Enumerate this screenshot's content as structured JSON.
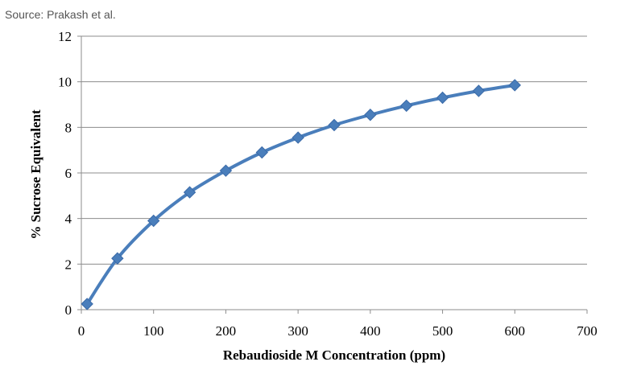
{
  "source": "Source: Prakash et al.",
  "chart_data": {
    "type": "line",
    "xlabel": "Rebaudioside M Concentration  (ppm)",
    "ylabel": "% Sucrose Equivalent",
    "xlim": [
      0,
      700
    ],
    "ylim": [
      0,
      12
    ],
    "xticks": [
      0,
      100,
      200,
      300,
      400,
      500,
      600,
      700
    ],
    "yticks": [
      0,
      2,
      4,
      6,
      8,
      10,
      12
    ],
    "grid": "horizontal",
    "series": [
      {
        "color": "#4a7ebb",
        "marker": "diamond",
        "x": [
          8,
          50,
          100,
          150,
          200,
          250,
          300,
          350,
          400,
          450,
          500,
          550,
          600
        ],
        "y": [
          0.25,
          2.25,
          3.9,
          5.15,
          6.1,
          6.9,
          7.55,
          8.1,
          8.55,
          8.95,
          9.3,
          9.6,
          9.85
        ]
      }
    ]
  }
}
